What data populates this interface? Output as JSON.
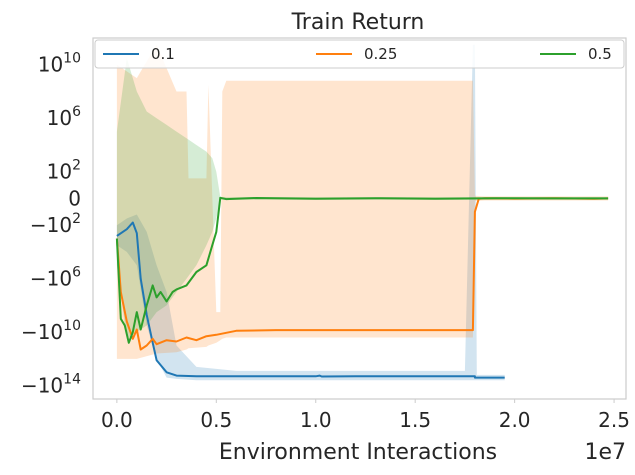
{
  "chart_data": {
    "type": "line",
    "title": "Train Return",
    "xlabel": "Environment Interactions",
    "ylabel": "",
    "x_offset_label": "1e7",
    "yscale": "symlog",
    "xlim": [
      -0.12,
      2.56
    ],
    "ylim_exponents": [
      -15,
      12
    ],
    "xticks": [
      0.0,
      0.5,
      1.0,
      1.5,
      2.0,
      2.5
    ],
    "xtick_labels": [
      "0.0",
      "0.5",
      "1.0",
      "1.5",
      "2.0",
      "2.5"
    ],
    "yticks": [
      {
        "value_exp": 10,
        "base": "10",
        "sup": "10"
      },
      {
        "value_exp": 6,
        "base": "10",
        "sup": "6"
      },
      {
        "value_exp": 2,
        "base": "10",
        "sup": "2"
      },
      {
        "value_exp": 0,
        "base": "0",
        "sup": ""
      },
      {
        "value_exp": -2,
        "base": "−10",
        "sup": "2"
      },
      {
        "value_exp": -6,
        "base": "−10",
        "sup": "6"
      },
      {
        "value_exp": -10,
        "base": "−10",
        "sup": "10"
      },
      {
        "value_exp": -14,
        "base": "−10",
        "sup": "14"
      }
    ],
    "grid": false,
    "legend_position": "top",
    "series": [
      {
        "name": "0.1",
        "color": "#1f77b4",
        "x": [
          0.0,
          0.05,
          0.08,
          0.1,
          0.12,
          0.15,
          0.18,
          0.2,
          0.25,
          0.3,
          0.4,
          0.6,
          1.0,
          1.02,
          1.03,
          1.2,
          1.5,
          1.8,
          1.8,
          1.95
        ],
        "y": [
          -2.8,
          -2.3,
          -1.8,
          -2.6,
          -6.0,
          -8.7,
          -10.8,
          -12.1,
          -13.0,
          -13.25,
          -13.3,
          -13.3,
          -13.3,
          -13.25,
          -13.32,
          -13.3,
          -13.3,
          -13.3,
          -13.4,
          -13.4
        ],
        "band_x": [
          0.0,
          0.05,
          0.1,
          0.15,
          0.2,
          0.25,
          0.3,
          0.4,
          0.6,
          1.0,
          1.5,
          1.75,
          1.79,
          1.8,
          1.81,
          1.85,
          1.95
        ],
        "band_upper": [
          -2.0,
          -1.5,
          -1.2,
          -2.5,
          -5.0,
          -7.0,
          -11.0,
          -12.6,
          -12.9,
          -12.9,
          -12.9,
          -12.9,
          11.5,
          11.5,
          -13.2,
          -13.2,
          -13.2
        ],
        "band_lower": [
          -3.5,
          -4.0,
          -5.0,
          -9.5,
          -12.0,
          -13.4,
          -13.5,
          -13.6,
          -13.6,
          -13.6,
          -13.6,
          -13.6,
          -13.6,
          -13.6,
          -13.6,
          -13.6,
          -13.6
        ]
      },
      {
        "name": "0.25",
        "color": "#ff7f0e",
        "x": [
          0.0,
          0.02,
          0.05,
          0.08,
          0.1,
          0.12,
          0.15,
          0.18,
          0.2,
          0.25,
          0.3,
          0.35,
          0.4,
          0.45,
          0.5,
          0.6,
          0.8,
          1.0,
          1.2,
          1.4,
          1.6,
          1.79,
          1.8,
          1.82,
          1.85,
          2.0,
          2.2,
          2.4,
          2.47
        ],
        "y": [
          -3.0,
          -7.0,
          -9.2,
          -10.5,
          -9.8,
          -11.3,
          -11.0,
          -10.5,
          -10.9,
          -10.6,
          -10.7,
          -10.4,
          -10.6,
          -10.3,
          -10.2,
          -9.9,
          -9.85,
          -9.85,
          -9.85,
          -9.85,
          -9.85,
          -9.85,
          -1.0,
          -0.02,
          0.02,
          -0.01,
          0.01,
          -0.02,
          0.0
        ],
        "band_x": [
          0.0,
          0.1,
          0.2,
          0.3,
          0.35,
          0.36,
          0.45,
          0.46,
          0.5,
          0.52,
          0.53,
          0.55,
          0.6,
          1.0,
          1.5,
          1.79,
          1.8,
          1.85,
          2.47
        ],
        "band_upper": [
          10.0,
          9.0,
          11.5,
          8.0,
          8.0,
          1.5,
          1.5,
          8.5,
          -8.5,
          -8.5,
          8.0,
          8.8,
          8.8,
          8.8,
          8.8,
          8.8,
          0.2,
          0.15,
          0.15
        ],
        "band_lower": [
          -12.0,
          -12.0,
          -11.6,
          -11.5,
          -11.3,
          -11.2,
          -11.1,
          -11.0,
          -10.8,
          -10.6,
          -10.5,
          -10.4,
          -10.4,
          -10.4,
          -10.4,
          -10.4,
          -0.2,
          -0.15,
          -0.15
        ]
      },
      {
        "name": "0.5",
        "color": "#2ca02c",
        "x": [
          0.0,
          0.02,
          0.04,
          0.06,
          0.08,
          0.1,
          0.12,
          0.15,
          0.18,
          0.2,
          0.22,
          0.25,
          0.28,
          0.3,
          0.35,
          0.4,
          0.45,
          0.48,
          0.5,
          0.52,
          0.55,
          0.7,
          1.0,
          1.3,
          1.6,
          1.9,
          2.2,
          2.47
        ],
        "y": [
          -3.0,
          -9.0,
          -9.5,
          -10.8,
          -10.0,
          -8.5,
          -9.8,
          -8.0,
          -6.5,
          -7.4,
          -7.0,
          -7.7,
          -7.0,
          -6.8,
          -6.5,
          -5.5,
          -5.0,
          -3.5,
          -2.5,
          0.05,
          -0.05,
          0.03,
          -0.02,
          0.02,
          -0.03,
          0.02,
          0.0,
          0.0
        ],
        "band_x": [
          0.0,
          0.05,
          0.1,
          0.15,
          0.2,
          0.25,
          0.3,
          0.35,
          0.4,
          0.45,
          0.48,
          0.5,
          0.52,
          0.55,
          2.47
        ],
        "band_upper": [
          5.0,
          10.5,
          8.0,
          6.5,
          6.0,
          5.5,
          5.0,
          4.5,
          4.0,
          3.5,
          3.0,
          2.0,
          0.1,
          0.1,
          0.1
        ],
        "band_lower": [
          -5.0,
          -10.5,
          -10.0,
          -9.5,
          -8.5,
          -8.0,
          -7.0,
          -6.0,
          -5.0,
          -3.5,
          -2.5,
          -1.5,
          -0.1,
          -0.1,
          -0.1
        ]
      }
    ]
  }
}
